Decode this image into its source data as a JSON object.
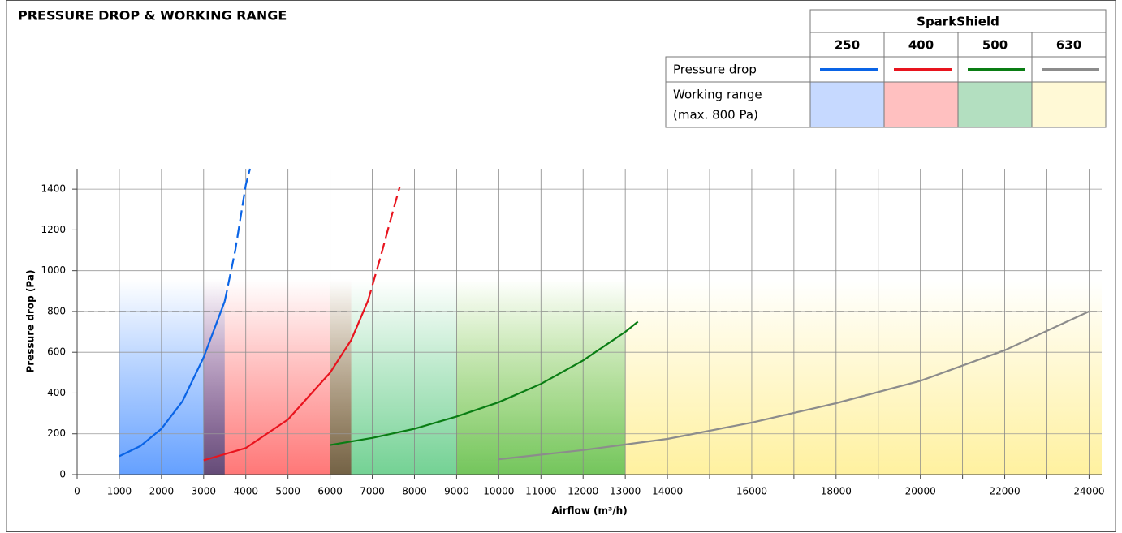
{
  "chart_data": {
    "type": "line",
    "title": "PRESSURE DROP & WORKING RANGE",
    "x_label": "Airflow (m³/h)",
    "y_label": "Pressure drop (Pa)",
    "legend": {
      "title": "SparkShield",
      "row_pressure": "Pressure drop",
      "row_range": [
        "Working range",
        "(max. 800 Pa)"
      ]
    },
    "xlim": [
      0,
      24300
    ],
    "ylim": [
      0,
      1500
    ],
    "xticks": [
      0,
      1000,
      2000,
      3000,
      4000,
      5000,
      6000,
      7000,
      8000,
      9000,
      10000,
      11000,
      12000,
      13000,
      14000,
      16000,
      18000,
      20000,
      22000,
      24000
    ],
    "x_minor_ticks": [
      15000,
      17000,
      19000,
      21000,
      23000
    ],
    "yticks": [
      0,
      200,
      400,
      600,
      800,
      1000,
      1200,
      1400
    ],
    "grid": true,
    "reference_line": 800,
    "series": [
      {
        "name": "250",
        "color": "#0a64e6",
        "swatch": "#c6d9ff",
        "range_fill": "#5c9bff",
        "range": [
          1000,
          3500
        ],
        "x": [
          1000,
          1500,
          2000,
          2500,
          3000,
          3500
        ],
        "values": [
          90,
          140,
          225,
          360,
          575,
          850
        ],
        "x_ext": [
          3500,
          3750,
          4000,
          4100
        ],
        "values_ext": [
          850,
          1100,
          1420,
          1500
        ]
      },
      {
        "name": "400",
        "color": "#e8141e",
        "swatch": "#ffc0c0",
        "range_fill": "#ff7070",
        "range": [
          3000,
          6500
        ],
        "x": [
          3000,
          4000,
          5000,
          6000,
          6500,
          6900
        ],
        "values": [
          70,
          130,
          270,
          500,
          660,
          853
        ],
        "x_ext": [
          6900,
          7200,
          7500,
          7650
        ],
        "values_ext": [
          853,
          1070,
          1300,
          1410
        ]
      },
      {
        "name": "500",
        "color": "#0a7d14",
        "swatch": "#b3dfc0",
        "range_fill": "#6ccf8e",
        "range": [
          6000,
          13000
        ],
        "x": [
          6000,
          7000,
          8000,
          9000,
          10000,
          11000,
          12000,
          13000,
          13300
        ],
        "values": [
          145,
          180,
          225,
          285,
          355,
          445,
          560,
          700,
          750
        ],
        "x_ext": [],
        "values_ext": []
      },
      {
        "name": "630",
        "color": "#8c8c8c",
        "swatch": "#fff9d6",
        "range_fill": "#fff09a",
        "range": [
          9000,
          24300
        ],
        "x": [
          10000,
          12000,
          14000,
          16000,
          18000,
          20000,
          22000,
          24000
        ],
        "values": [
          75,
          120,
          175,
          255,
          350,
          460,
          610,
          800
        ],
        "x_ext": [],
        "values_ext": []
      }
    ]
  }
}
